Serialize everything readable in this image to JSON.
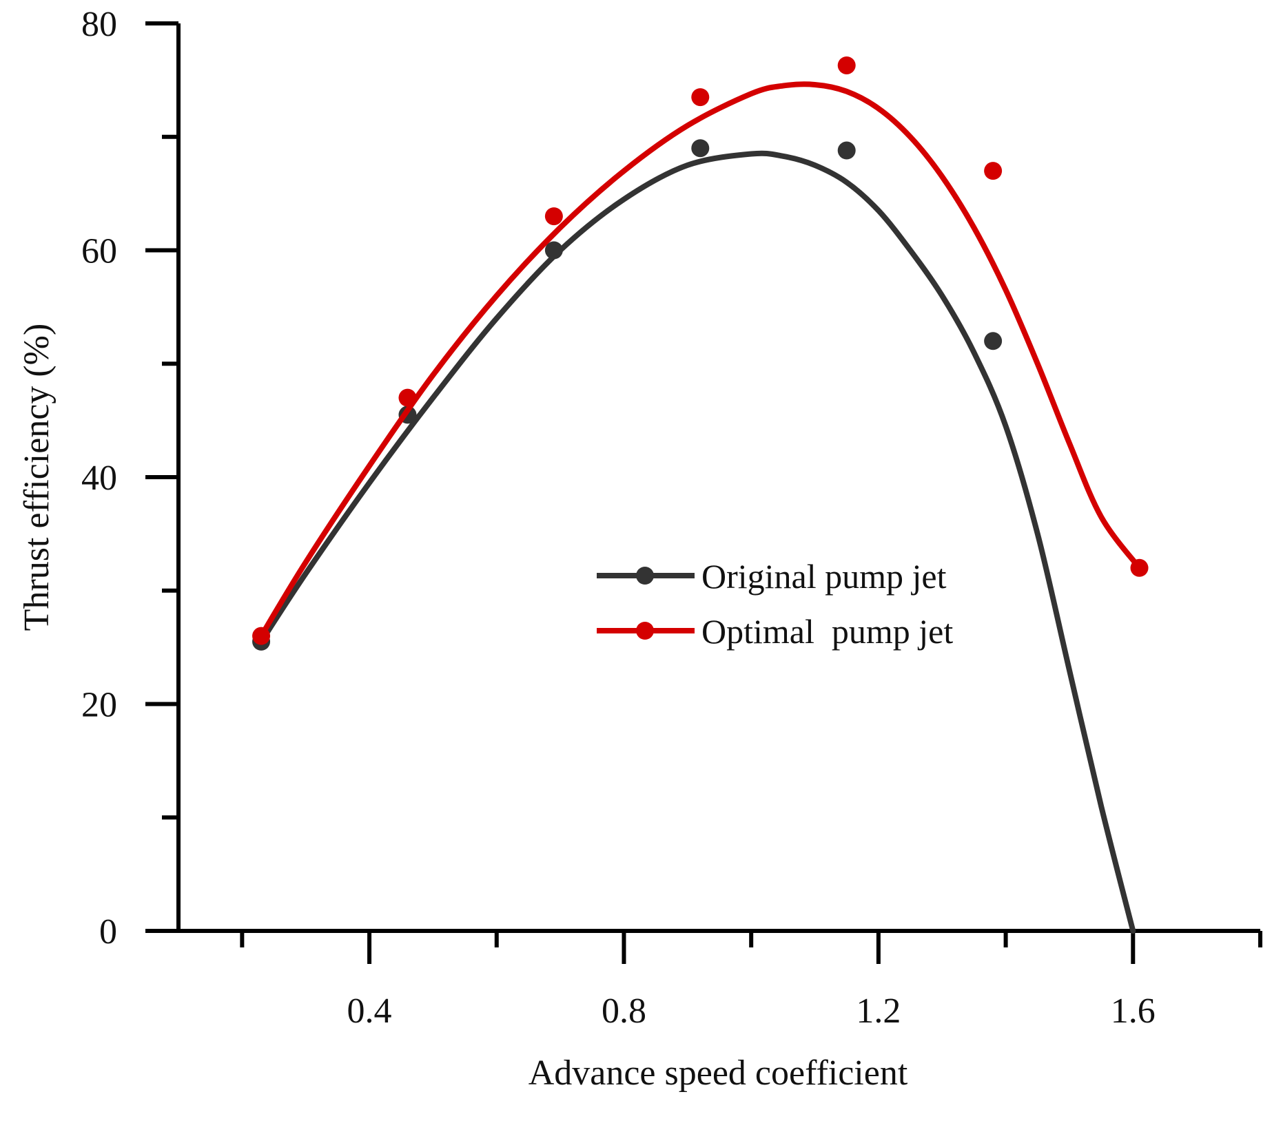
{
  "chart_data": {
    "type": "line",
    "title": "",
    "xlabel": "Advance speed coefficient",
    "ylabel": "Thrust efficiency (%)",
    "xlim": [
      0.1,
      1.8
    ],
    "ylim": [
      0,
      80
    ],
    "x_ticks": [
      0.4,
      0.8,
      1.2,
      1.6
    ],
    "x_tick_labels": [
      "0.4",
      "0.8",
      "1.2",
      "1.6"
    ],
    "y_ticks": [
      0,
      20,
      40,
      60,
      80
    ],
    "y_tick_labels": [
      "0",
      "20",
      "40",
      "60",
      "80"
    ],
    "grid": false,
    "legend_position": "center-right",
    "series": [
      {
        "name": "Original pump jet",
        "color": "#333333",
        "points": {
          "x": [
            0.23,
            0.46,
            0.69,
            0.92,
            1.15,
            1.38
          ],
          "y": [
            25.5,
            45.5,
            60.0,
            69.0,
            68.8,
            52.0
          ]
        },
        "fit_curve": {
          "x": [
            0.23,
            0.3,
            0.4,
            0.5,
            0.6,
            0.7,
            0.8,
            0.9,
            1.0,
            1.05,
            1.1,
            1.15,
            1.2,
            1.25,
            1.3,
            1.35,
            1.4,
            1.45,
            1.5,
            1.55,
            1.6
          ],
          "y": [
            25.5,
            31.5,
            39.5,
            47.0,
            54.0,
            60.0,
            64.5,
            67.5,
            68.5,
            68.3,
            67.5,
            66.0,
            63.5,
            60.0,
            56.0,
            51.0,
            44.5,
            35.0,
            23.0,
            11.0,
            0.0
          ]
        }
      },
      {
        "name": "Optimal  pump jet",
        "color": "#d40000",
        "points": {
          "x": [
            0.23,
            0.46,
            0.69,
            0.92,
            1.15,
            1.38,
            1.61
          ],
          "y": [
            26.0,
            47.0,
            63.0,
            73.5,
            76.3,
            67.0,
            32.0
          ]
        },
        "fit_curve": {
          "x": [
            0.23,
            0.3,
            0.4,
            0.5,
            0.6,
            0.7,
            0.8,
            0.9,
            1.0,
            1.05,
            1.1,
            1.15,
            1.2,
            1.25,
            1.3,
            1.35,
            1.4,
            1.45,
            1.5,
            1.55,
            1.61
          ],
          "y": [
            26.0,
            32.5,
            41.0,
            49.0,
            56.0,
            62.0,
            67.0,
            71.0,
            73.8,
            74.5,
            74.6,
            74.0,
            72.5,
            70.0,
            66.5,
            62.0,
            56.5,
            50.0,
            43.0,
            36.5,
            32.0
          ]
        }
      }
    ]
  }
}
